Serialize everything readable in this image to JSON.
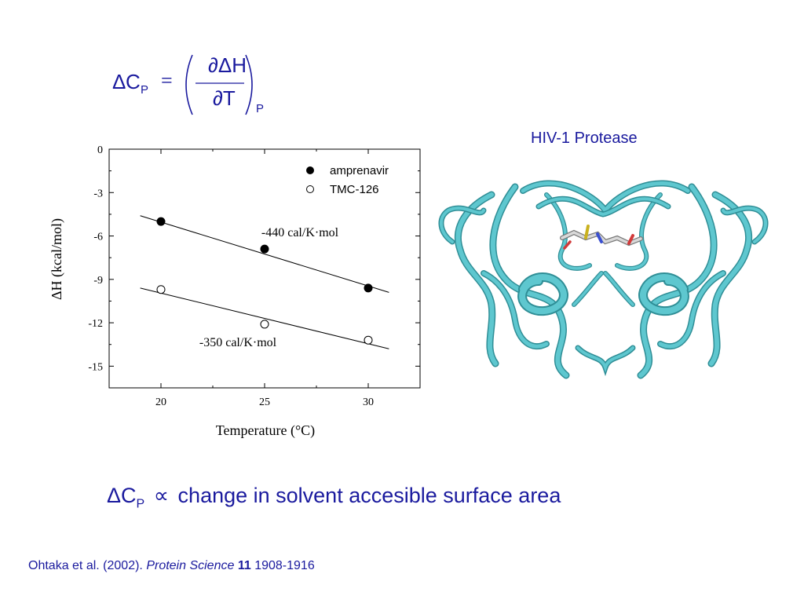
{
  "equation": {
    "lhs_delta": "Δ",
    "lhs_var": "C",
    "lhs_sub": "P",
    "equals": "=",
    "numerator": "∂ΔH",
    "denominator": "∂T",
    "outer_sub": "P"
  },
  "protein_label": "HIV-1 Protease",
  "proportionality": {
    "delta": "Δ",
    "var": "C",
    "sub": "P",
    "symbol": "∝",
    "text": "change in solvent accesible surface area"
  },
  "citation": {
    "authors": "Ohtaka et al. (2002).",
    "journal": "Protein Science",
    "volume": "11",
    "pages": "1908-1916"
  },
  "colors": {
    "text": "#1a1a9e",
    "ribbon": "#5ec7cf",
    "ribbon_edge": "#2f8e96"
  },
  "chart_data": {
    "type": "scatter",
    "xlabel": "Temperature (°C)",
    "ylabel": "ΔH (kcal/mol)",
    "xlim": [
      17.5,
      32.5
    ],
    "ylim": [
      -16.5,
      0
    ],
    "xticks": [
      20,
      25,
      30
    ],
    "yticks": [
      0,
      -3,
      -6,
      -9,
      -12,
      -15
    ],
    "legend_position": "top-right",
    "grid": false,
    "series": [
      {
        "name": "amprenavir",
        "marker": "filled-circle",
        "x": [
          20,
          25,
          30
        ],
        "y": [
          -5.0,
          -6.9,
          -9.6
        ],
        "fit": {
          "x": [
            19,
            31
          ],
          "y": [
            -4.6,
            -9.9
          ]
        },
        "annotation": "-440 cal/K·mol"
      },
      {
        "name": "TMC-126",
        "marker": "open-circle",
        "x": [
          20,
          25,
          30
        ],
        "y": [
          -9.7,
          -12.1,
          -13.2
        ],
        "fit": {
          "x": [
            19,
            31
          ],
          "y": [
            -9.6,
            -13.8
          ]
        },
        "annotation": "-350 cal/K·mol"
      }
    ]
  }
}
